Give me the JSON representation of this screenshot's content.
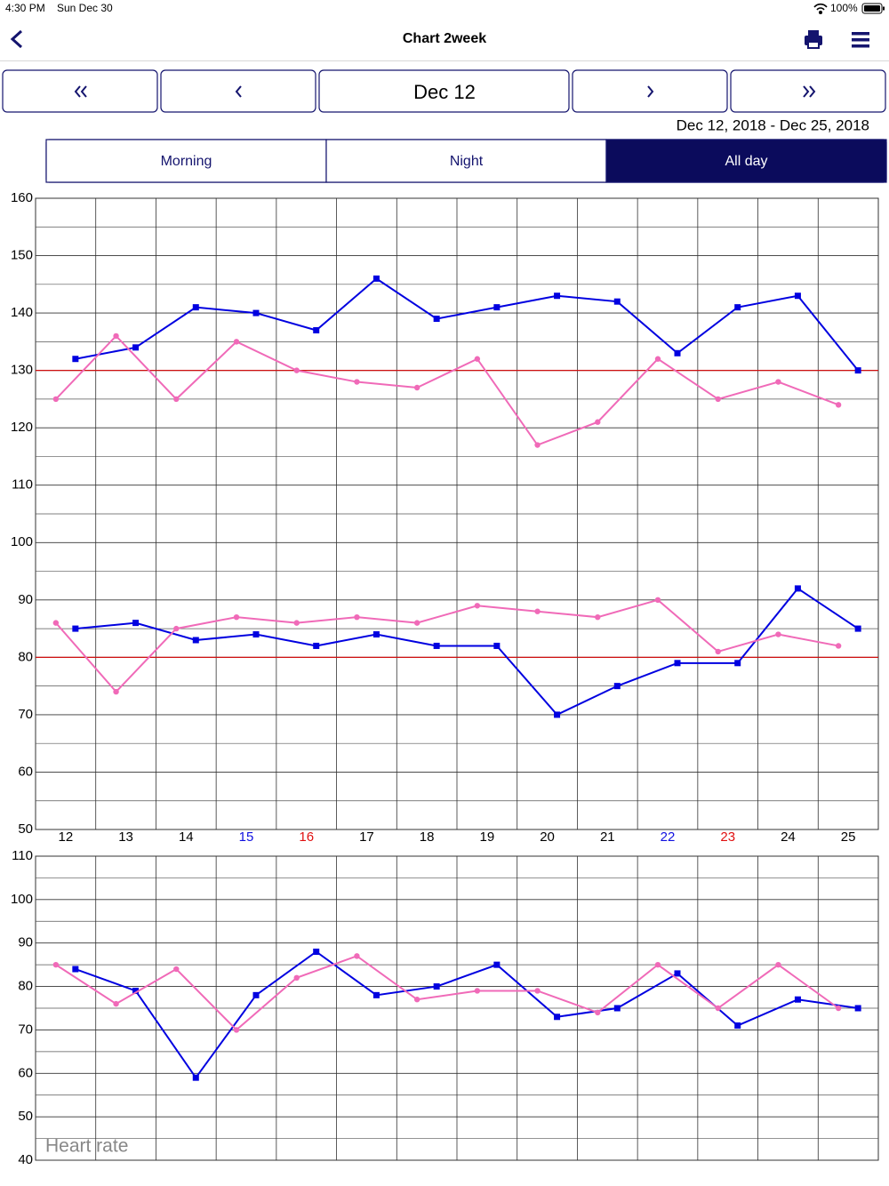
{
  "status_bar": {
    "time": "4:30 PM",
    "date": "Sun Dec 30",
    "battery": "100%"
  },
  "nav": {
    "title": "Chart  2week"
  },
  "date_nav": {
    "current": "Dec 12"
  },
  "range": "Dec 12, 2018 - Dec 25, 2018",
  "tabs": {
    "items": [
      "Morning",
      "Night",
      "All day"
    ],
    "selected": 2
  },
  "chart_data": [
    {
      "type": "line",
      "categories": [
        "12",
        "13",
        "14",
        "15",
        "16",
        "17",
        "18",
        "19",
        "20",
        "21",
        "22",
        "23",
        "24",
        "25"
      ],
      "category_colors": [
        "#000000",
        "#000000",
        "#000000",
        "#1010e0",
        "#e01010",
        "#000000",
        "#000000",
        "#000000",
        "#000000",
        "#000000",
        "#1010e0",
        "#e01010",
        "#000000",
        "#000000"
      ],
      "ylim": [
        50,
        160
      ],
      "yticks": [
        50,
        60,
        70,
        80,
        90,
        100,
        110,
        120,
        130,
        140,
        150,
        160
      ],
      "y_minor_ticks": [
        55,
        65,
        75,
        85,
        95,
        105,
        115,
        125,
        135,
        145,
        155
      ],
      "grid": true,
      "reference_lines": [
        130,
        80
      ],
      "reference_color": "#d01010",
      "series": [
        {
          "color": "#0000e0",
          "marker": "square",
          "values": [
            132,
            134,
            141,
            140,
            137,
            146,
            139,
            141,
            143,
            142,
            133,
            141,
            143,
            130
          ]
        },
        {
          "color": "#f06ab8",
          "marker": "circle",
          "values": [
            125,
            136,
            125,
            135,
            130,
            128,
            127,
            132,
            117,
            121,
            132,
            125,
            128,
            124
          ]
        },
        {
          "color": "#0000e0",
          "marker": "square",
          "values": [
            85,
            86,
            83,
            84,
            82,
            84,
            82,
            82,
            70,
            75,
            79,
            79,
            92,
            85
          ]
        },
        {
          "color": "#f06ab8",
          "marker": "circle",
          "values": [
            86,
            74,
            85,
            87,
            86,
            87,
            86,
            89,
            88,
            87,
            90,
            81,
            84,
            82
          ]
        }
      ]
    },
    {
      "type": "line",
      "annotation": "Heart rate",
      "ylim": [
        40,
        110
      ],
      "yticks": [
        40,
        50,
        60,
        70,
        80,
        90,
        100,
        110
      ],
      "y_minor_ticks": [
        45,
        55,
        65,
        75,
        85,
        95,
        105
      ],
      "grid": true,
      "series": [
        {
          "color": "#0000e0",
          "marker": "square",
          "values": [
            84,
            79,
            59,
            78,
            88,
            78,
            80,
            85,
            73,
            75,
            83,
            71,
            77,
            75
          ]
        },
        {
          "color": "#f06ab8",
          "marker": "circle",
          "values": [
            85,
            76,
            84,
            70,
            82,
            87,
            77,
            79,
            79,
            74,
            85,
            75,
            85,
            75
          ]
        }
      ]
    }
  ]
}
